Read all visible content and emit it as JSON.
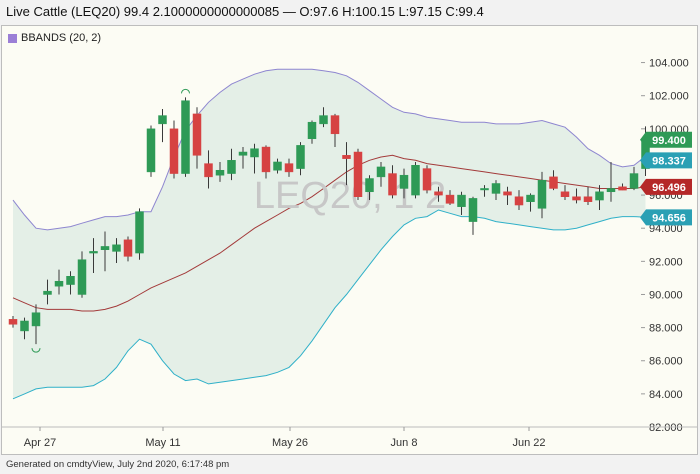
{
  "header": {
    "title": "Live Cattle (LEQ20) 99.4 2.1000000000000085 — O:97.6 H:100.15 L:97.15 C:99.4"
  },
  "footer": {
    "text": "Generated on cmdtyView, July 2nd 2020, 6:17:48 pm"
  },
  "watermark": "LEQ20, 1 2",
  "colors": {
    "up": "#2e9a56",
    "down": "#d64242",
    "band_line": "#8e86d0",
    "band_lower_line": "#2fb0c8",
    "band_fill": "#e4efe7",
    "mid_line": "#a33a3a"
  },
  "chart_data": {
    "type": "candlestick",
    "indicator": "BBANDS (20, 2)",
    "yaxis": {
      "ylim": [
        82,
        105
      ],
      "ticks": [
        "104.000",
        "102.000",
        "100.000",
        "98.000",
        "96.000",
        "94.000",
        "92.000",
        "90.000",
        "88.000",
        "86.000",
        "84.000",
        "82.000"
      ]
    },
    "xaxis": {
      "tick_labels": [
        "Apr 27",
        "May 11",
        "May 26",
        "Jun 8",
        "Jun 22"
      ]
    },
    "price_tags": [
      {
        "label": "99.400",
        "value": 99.4,
        "kind": "close"
      },
      {
        "label": "98.337",
        "value": 98.337,
        "kind": "upper"
      },
      {
        "label": "96.496",
        "value": 96.496,
        "kind": "middle"
      },
      {
        "label": "94.656",
        "value": 94.656,
        "kind": "lower"
      }
    ],
    "candles": [
      {
        "o": 88.5,
        "h": 88.7,
        "l": 88.0,
        "c": 88.2
      },
      {
        "o": 87.8,
        "h": 88.6,
        "l": 87.3,
        "c": 88.4
      },
      {
        "o": 88.1,
        "h": 89.4,
        "l": 87.0,
        "c": 88.9
      },
      {
        "o": 90.0,
        "h": 90.9,
        "l": 89.4,
        "c": 90.2
      },
      {
        "o": 90.5,
        "h": 91.5,
        "l": 90.0,
        "c": 90.8
      },
      {
        "o": 90.6,
        "h": 91.4,
        "l": 90.0,
        "c": 91.1
      },
      {
        "o": 90.0,
        "h": 92.6,
        "l": 89.8,
        "c": 92.1
      },
      {
        "o": 92.5,
        "h": 93.4,
        "l": 91.3,
        "c": 92.6
      },
      {
        "o": 92.7,
        "h": 93.8,
        "l": 91.4,
        "c": 92.9
      },
      {
        "o": 92.6,
        "h": 93.4,
        "l": 91.9,
        "c": 93.0
      },
      {
        "o": 93.3,
        "h": 93.5,
        "l": 92.0,
        "c": 92.3
      },
      {
        "o": 92.5,
        "h": 95.2,
        "l": 92.1,
        "c": 95.0
      },
      {
        "o": 97.4,
        "h": 100.2,
        "l": 97.1,
        "c": 100.0
      },
      {
        "o": 100.3,
        "h": 101.2,
        "l": 99.2,
        "c": 100.8
      },
      {
        "o": 100.0,
        "h": 100.5,
        "l": 97.0,
        "c": 97.3
      },
      {
        "o": 97.3,
        "h": 101.9,
        "l": 97.1,
        "c": 101.7
      },
      {
        "o": 100.9,
        "h": 101.3,
        "l": 97.6,
        "c": 98.4
      },
      {
        "o": 97.9,
        "h": 98.7,
        "l": 96.4,
        "c": 97.1
      },
      {
        "o": 97.2,
        "h": 98.0,
        "l": 96.8,
        "c": 97.5
      },
      {
        "o": 97.3,
        "h": 98.8,
        "l": 96.9,
        "c": 98.1
      },
      {
        "o": 98.4,
        "h": 98.9,
        "l": 97.6,
        "c": 98.6
      },
      {
        "o": 98.3,
        "h": 99.1,
        "l": 97.3,
        "c": 98.8
      },
      {
        "o": 98.9,
        "h": 99.0,
        "l": 97.0,
        "c": 97.4
      },
      {
        "o": 97.5,
        "h": 98.2,
        "l": 97.3,
        "c": 98.0
      },
      {
        "o": 97.9,
        "h": 98.2,
        "l": 97.1,
        "c": 97.4
      },
      {
        "o": 97.6,
        "h": 99.2,
        "l": 97.2,
        "c": 99.0
      },
      {
        "o": 99.4,
        "h": 100.5,
        "l": 99.1,
        "c": 100.4
      },
      {
        "o": 100.3,
        "h": 101.3,
        "l": 100.1,
        "c": 100.8
      },
      {
        "o": 100.8,
        "h": 100.9,
        "l": 98.9,
        "c": 99.7
      },
      {
        "o": 98.4,
        "h": 99.2,
        "l": 96.6,
        "c": 98.2
      },
      {
        "o": 98.6,
        "h": 98.8,
        "l": 95.7,
        "c": 95.9
      },
      {
        "o": 96.2,
        "h": 97.2,
        "l": 95.7,
        "c": 97.0
      },
      {
        "o": 97.1,
        "h": 98.0,
        "l": 96.5,
        "c": 97.7
      },
      {
        "o": 97.3,
        "h": 97.8,
        "l": 95.8,
        "c": 96.0
      },
      {
        "o": 96.4,
        "h": 97.6,
        "l": 95.8,
        "c": 97.2
      },
      {
        "o": 96.0,
        "h": 98.0,
        "l": 95.8,
        "c": 97.8
      },
      {
        "o": 97.6,
        "h": 97.8,
        "l": 96.1,
        "c": 96.3
      },
      {
        "o": 96.2,
        "h": 96.5,
        "l": 95.6,
        "c": 96.0
      },
      {
        "o": 96.0,
        "h": 96.3,
        "l": 95.4,
        "c": 95.5
      },
      {
        "o": 95.3,
        "h": 96.2,
        "l": 94.8,
        "c": 96.0
      },
      {
        "o": 94.4,
        "h": 95.9,
        "l": 93.6,
        "c": 95.8
      },
      {
        "o": 96.4,
        "h": 96.6,
        "l": 95.9,
        "c": 96.4
      },
      {
        "o": 96.1,
        "h": 96.9,
        "l": 95.7,
        "c": 96.7
      },
      {
        "o": 96.2,
        "h": 96.5,
        "l": 95.4,
        "c": 96.0
      },
      {
        "o": 95.9,
        "h": 96.3,
        "l": 95.1,
        "c": 95.4
      },
      {
        "o": 95.6,
        "h": 96.1,
        "l": 95.0,
        "c": 96.0
      },
      {
        "o": 95.2,
        "h": 97.4,
        "l": 94.6,
        "c": 96.9
      },
      {
        "o": 97.1,
        "h": 97.5,
        "l": 96.3,
        "c": 96.4
      },
      {
        "o": 96.2,
        "h": 96.6,
        "l": 95.7,
        "c": 95.9
      },
      {
        "o": 95.9,
        "h": 96.4,
        "l": 95.5,
        "c": 95.7
      },
      {
        "o": 95.9,
        "h": 96.5,
        "l": 95.4,
        "c": 95.6
      },
      {
        "o": 95.7,
        "h": 96.6,
        "l": 95.1,
        "c": 96.2
      },
      {
        "o": 96.2,
        "h": 98.0,
        "l": 95.6,
        "c": 96.4
      },
      {
        "o": 96.5,
        "h": 96.7,
        "l": 96.3,
        "c": 96.3
      },
      {
        "o": 96.4,
        "h": 97.7,
        "l": 96.3,
        "c": 97.3
      },
      {
        "o": 97.6,
        "h": 100.15,
        "l": 97.15,
        "c": 99.4
      }
    ],
    "bollinger": {
      "upper": [
        95.7,
        94.8,
        94.0,
        93.9,
        94.0,
        94.1,
        94.3,
        94.5,
        94.7,
        94.7,
        94.8,
        95.0,
        95.0,
        96.5,
        98.3,
        99.9,
        100.8,
        101.6,
        102.2,
        102.7,
        103.0,
        103.3,
        103.5,
        103.6,
        103.6,
        103.6,
        103.6,
        103.5,
        103.4,
        103.2,
        102.8,
        102.3,
        101.8,
        101.3,
        101.0,
        100.9,
        100.7,
        100.6,
        100.5,
        100.4,
        100.4,
        100.4,
        100.3,
        100.3,
        100.3,
        100.4,
        100.5,
        100.3,
        100.1,
        99.5,
        98.8,
        98.4,
        97.9,
        97.7,
        97.8,
        98.34
      ],
      "middle": [
        89.8,
        89.5,
        89.2,
        89.1,
        89.1,
        89.1,
        89.0,
        89.0,
        89.1,
        89.3,
        89.6,
        90.0,
        90.4,
        90.7,
        91.0,
        91.3,
        91.7,
        92.1,
        92.5,
        93.0,
        93.5,
        94.0,
        94.4,
        94.8,
        95.2,
        95.5,
        95.9,
        96.4,
        96.9,
        97.4,
        97.8,
        98.1,
        98.3,
        98.4,
        98.2,
        98.1,
        97.9,
        97.8,
        97.7,
        97.6,
        97.5,
        97.4,
        97.3,
        97.2,
        97.1,
        97.0,
        96.9,
        96.8,
        96.7,
        96.6,
        96.5,
        96.4,
        96.4,
        96.4,
        96.4,
        96.5
      ],
      "lower": [
        83.7,
        84.0,
        84.3,
        84.4,
        84.4,
        84.4,
        84.4,
        84.5,
        84.9,
        85.6,
        86.6,
        87.3,
        87.0,
        86.0,
        85.2,
        84.8,
        84.9,
        84.6,
        84.7,
        84.8,
        84.9,
        85.0,
        85.1,
        85.3,
        85.6,
        86.3,
        87.2,
        88.2,
        89.2,
        90.0,
        90.9,
        91.8,
        92.7,
        93.5,
        94.2,
        94.6,
        94.7,
        95.1,
        94.9,
        94.7,
        94.7,
        94.6,
        94.4,
        94.3,
        94.2,
        94.1,
        94.0,
        93.9,
        93.9,
        94.0,
        94.2,
        94.4,
        94.6,
        94.7,
        94.7,
        94.66
      ]
    }
  }
}
